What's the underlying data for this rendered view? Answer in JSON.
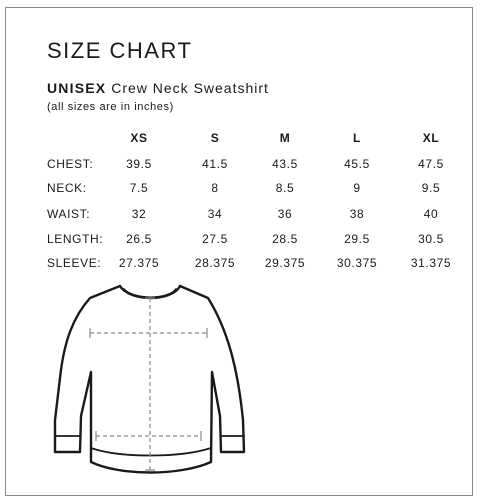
{
  "title": "SIZE CHART",
  "product": {
    "bold": "UNISEX",
    "name": "Crew Neck Sweatshirt"
  },
  "note": "(all sizes are in inches)",
  "sizes": [
    "XS",
    "S",
    "M",
    "L",
    "XL"
  ],
  "rows": [
    {
      "label": "CHEST:",
      "values": [
        "39.5",
        "41.5",
        "43.5",
        "45.5",
        "47.5"
      ]
    },
    {
      "label": "NECK:",
      "values": [
        "7.5",
        "8",
        "8.5",
        "9",
        "9.5"
      ]
    },
    {
      "label": "WAIST:",
      "values": [
        "32",
        "34",
        "36",
        "38",
        "40"
      ]
    },
    {
      "label": "LENGTH:",
      "values": [
        "26.5",
        "27.5",
        "28.5",
        "29.5",
        "30.5"
      ]
    },
    {
      "label": "SLEEVE:",
      "values": [
        "27.375",
        "28.375",
        "29.375",
        "30.375",
        "31.375"
      ]
    }
  ],
  "illustration": "sweatshirt-measurement-diagram"
}
